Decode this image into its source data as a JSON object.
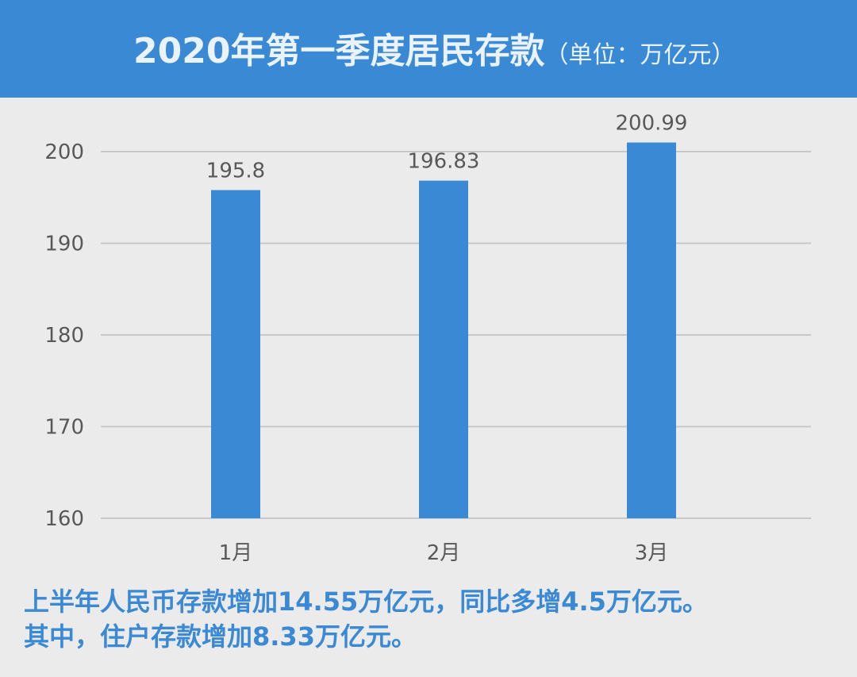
{
  "header": {
    "title": "2020年第一季度居民存款",
    "unit": "（单位：万亿元）"
  },
  "colors": {
    "header_bg": "#3a89d4",
    "bar": "#3a89d4",
    "background": "#ebebeb",
    "grid": "#c8c8c8",
    "text": "#595959",
    "note_text": "#3a89d4"
  },
  "chart_data": {
    "type": "bar",
    "title": "2020年第一季度居民存款（单位：万亿元）",
    "categories": [
      "1月",
      "2月",
      "3月"
    ],
    "values": [
      195.8,
      196.83,
      200.99
    ],
    "data_labels": [
      "195.8",
      "196.83",
      "200.99"
    ],
    "yticks": [
      160,
      170,
      180,
      190,
      200
    ],
    "ylim": [
      160,
      200
    ],
    "grid": true,
    "legend": "none"
  },
  "notes": [
    "上半年人民币存款增加14.55万亿元，同比多增4.5万亿元。",
    "其中，住户存款增加8.33万亿元。"
  ]
}
